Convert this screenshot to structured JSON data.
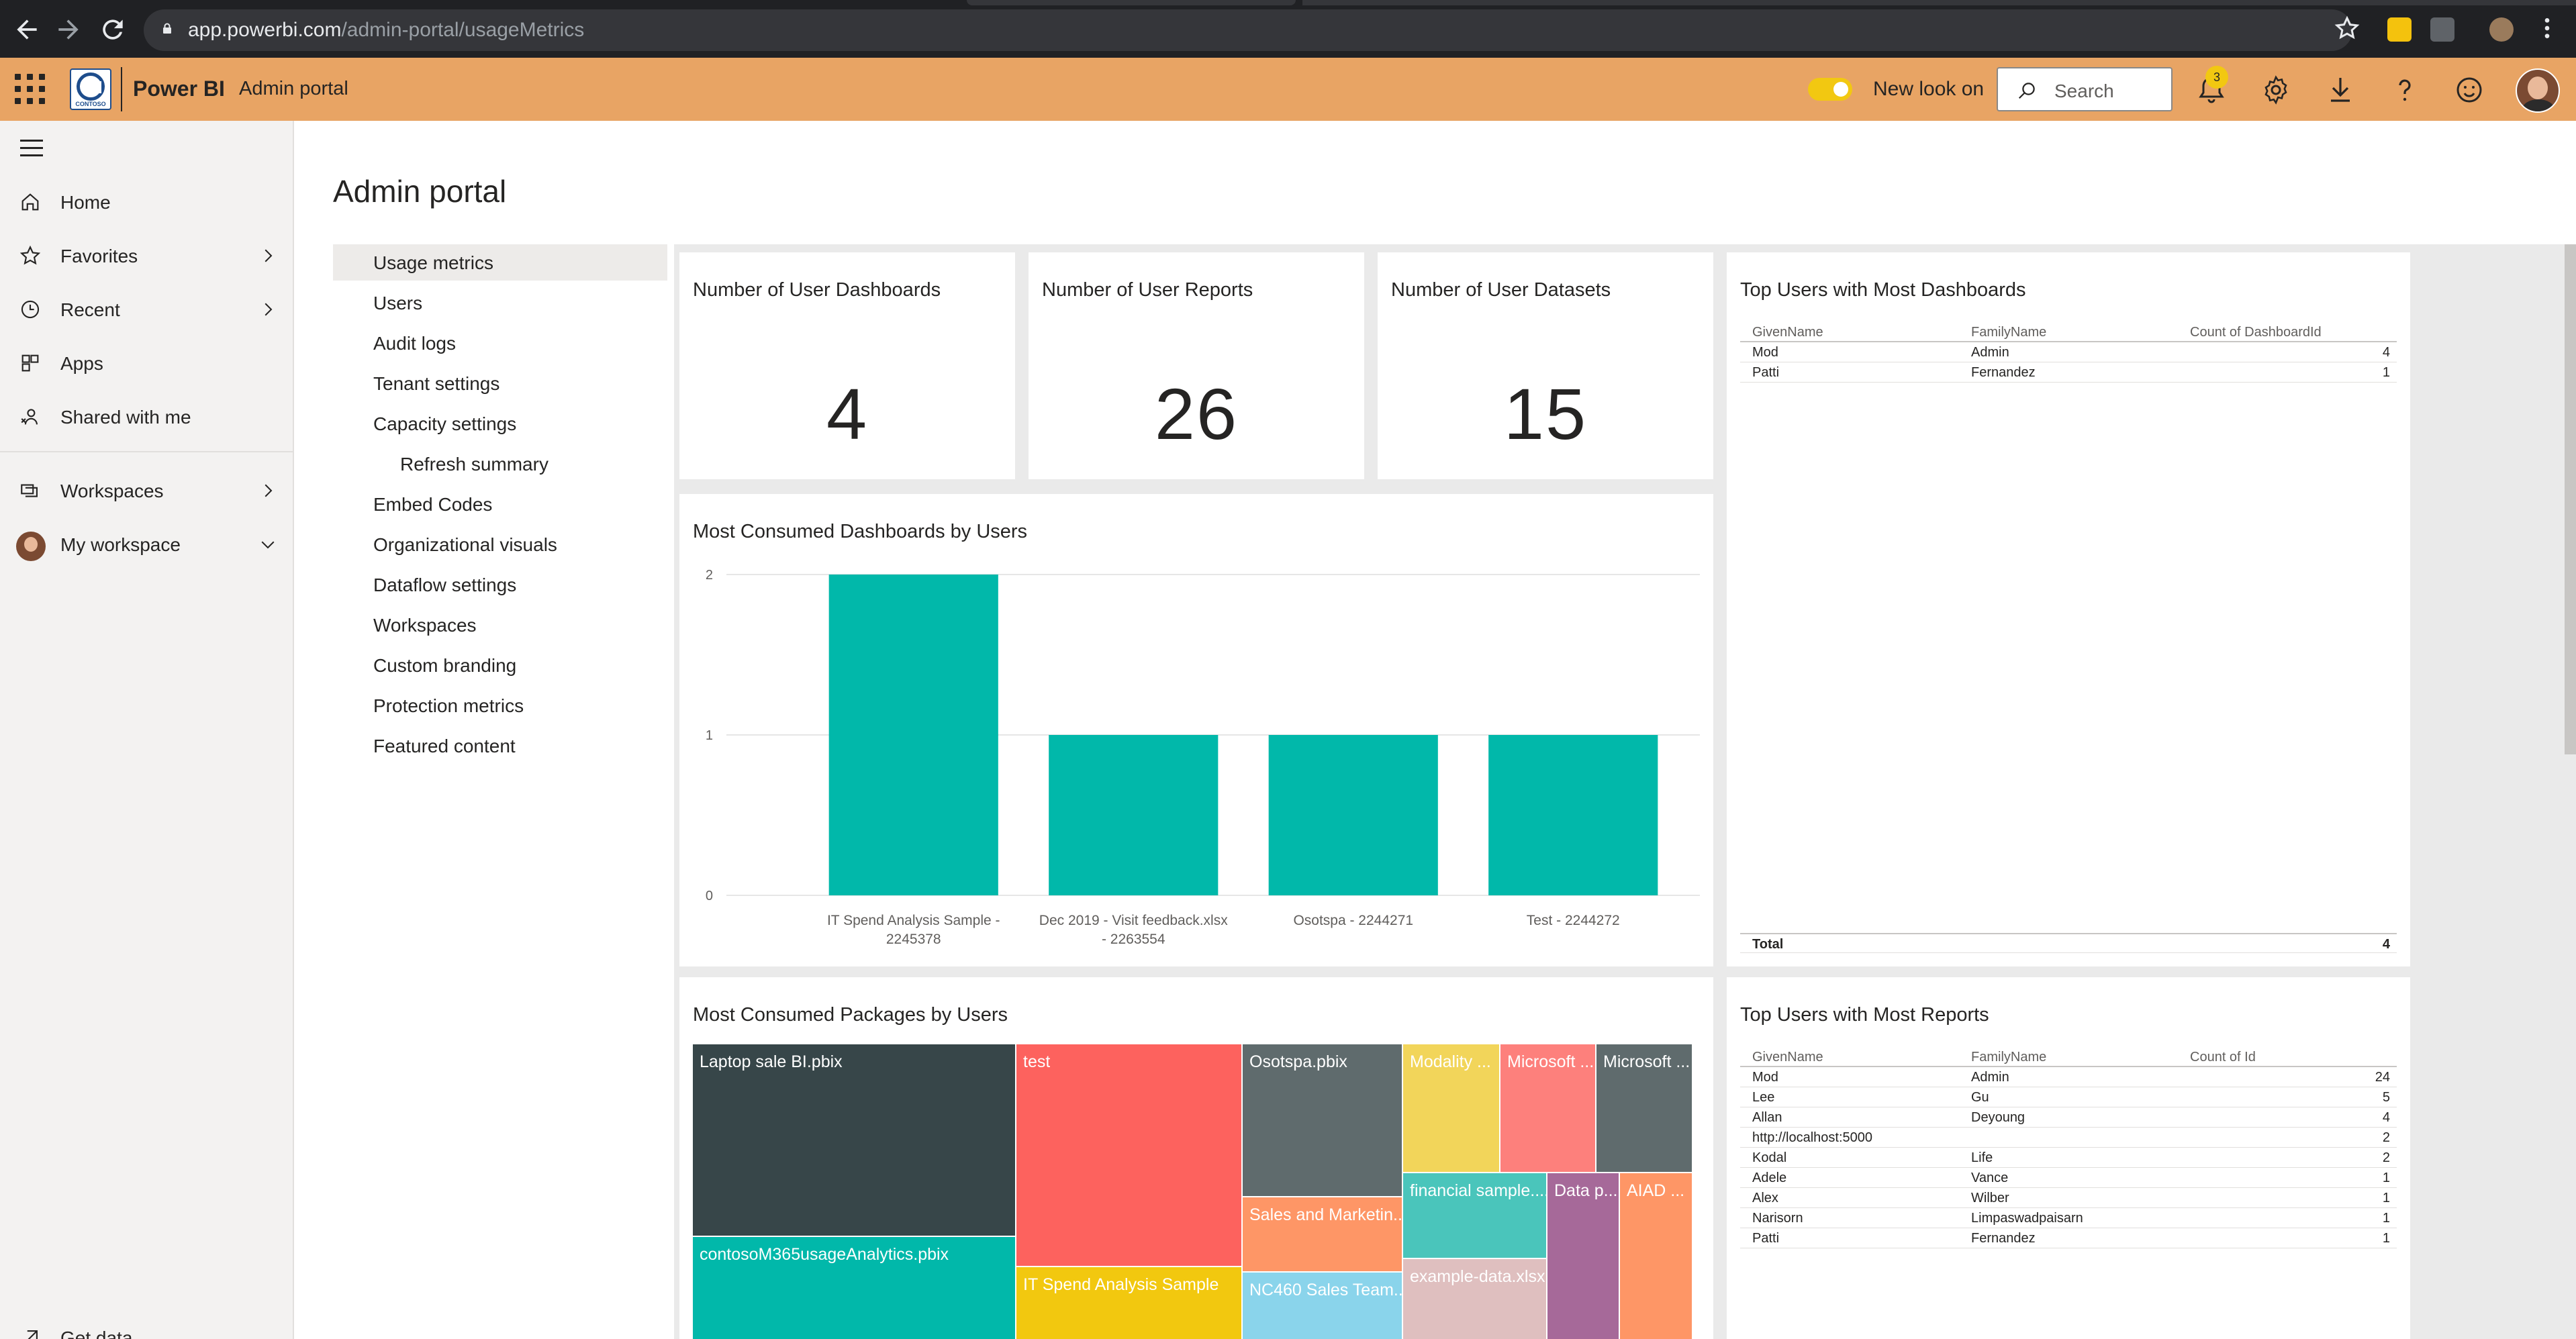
{
  "browser": {
    "url_host": "app.powerbi.com",
    "url_path": "/admin-portal/usageMetrics"
  },
  "header": {
    "app_name": "Power BI",
    "breadcrumb": "Admin portal",
    "logo_text": "CONTOSO",
    "new_look_label": "New look on",
    "search_placeholder": "Search",
    "notification_count": "3"
  },
  "nav": {
    "items": [
      {
        "label": "Home",
        "icon": "home-icon"
      },
      {
        "label": "Favorites",
        "icon": "star-icon"
      },
      {
        "label": "Recent",
        "icon": "clock-icon"
      },
      {
        "label": "Apps",
        "icon": "apps-icon"
      },
      {
        "label": "Shared with me",
        "icon": "shared-icon"
      },
      {
        "label": "Workspaces",
        "icon": "workspaces-icon"
      },
      {
        "label": "My workspace",
        "icon": "avatar"
      },
      {
        "label": "Get data",
        "icon": "arrow-up-right-icon"
      }
    ]
  },
  "page": {
    "title": "Admin portal"
  },
  "settings_menu": [
    "Usage metrics",
    "Users",
    "Audit logs",
    "Tenant settings",
    "Capacity settings",
    "Refresh summary",
    "Embed Codes",
    "Organizational visuals",
    "Dataflow settings",
    "Workspaces",
    "Custom branding",
    "Protection metrics",
    "Featured content"
  ],
  "kpis": [
    {
      "title": "Number of User Dashboards",
      "value": "4"
    },
    {
      "title": "Number of User Reports",
      "value": "26"
    },
    {
      "title": "Number of User Datasets",
      "value": "15"
    }
  ],
  "top_dashboards": {
    "title": "Top Users with Most Dashboards",
    "columns": [
      "GivenName",
      "FamilyName",
      "Count of DashboardId"
    ],
    "rows": [
      [
        "Mod",
        "Admin",
        "4"
      ],
      [
        "Patti",
        "Fernandez",
        "1"
      ]
    ],
    "total_label": "Total",
    "total_value": "4"
  },
  "top_reports": {
    "title": "Top Users with Most Reports",
    "columns": [
      "GivenName",
      "FamilyName",
      "Count of Id"
    ],
    "rows": [
      [
        "Mod",
        "Admin",
        "24"
      ],
      [
        "Lee",
        "Gu",
        "5"
      ],
      [
        "Allan",
        "Deyoung",
        "4"
      ],
      [
        "http://localhost:5000",
        "",
        "2"
      ],
      [
        "Kodal",
        "Life",
        "2"
      ],
      [
        "Adele",
        "Vance",
        "1"
      ],
      [
        "Alex",
        "Wilber",
        "1"
      ],
      [
        "Narisorn",
        "Limpaswadpaisarn",
        "1"
      ],
      [
        "Patti",
        "Fernandez",
        "1"
      ]
    ]
  },
  "chart_data": {
    "type": "bar",
    "title": "Most Consumed Dashboards by Users",
    "categories": [
      [
        "IT Spend Analysis Sample -",
        "2245378"
      ],
      [
        "Dec 2019 - Visit feedback.xlsx",
        "- 2263554"
      ],
      [
        "Osotspa - 2244271"
      ],
      [
        "Test - 2244272"
      ]
    ],
    "values": [
      2,
      1,
      1,
      1
    ],
    "ylim": [
      0,
      2
    ],
    "yticks": [
      "0",
      "1",
      "2"
    ],
    "color": "#01b8aa",
    "grid": true
  },
  "treemap": {
    "title": "Most Consumed Packages by Users",
    "items": [
      {
        "label": "Laptop sale BI.pbix",
        "color": "#374649"
      },
      {
        "label": "contosoM365usageAnalytics.pbix",
        "color": "#01b8aa"
      },
      {
        "label": "test",
        "color": "#fd625e"
      },
      {
        "label": "IT Spend Analysis Sample",
        "color": "#f2c80f"
      },
      {
        "label": "Osotspa.pbix",
        "color": "#5f6b6d"
      },
      {
        "label": "Sales and Marketin...",
        "color": "#fe9666"
      },
      {
        "label": "NC460 Sales Team....",
        "color": "#8ad4eb"
      },
      {
        "label": "Modality ...",
        "color": "#f2d55a"
      },
      {
        "label": "Microsoft ...",
        "color": "#fd807c"
      },
      {
        "label": "Microsoft ...",
        "color": "#5f6b6d"
      },
      {
        "label": "financial sample....",
        "color": "#4ac5bb"
      },
      {
        "label": "example-data.xlsx",
        "color": "#dfbfbf"
      },
      {
        "label": "Data p...",
        "color": "#a66999"
      },
      {
        "label": "AIAD ...",
        "color": "#fe9666"
      }
    ]
  }
}
